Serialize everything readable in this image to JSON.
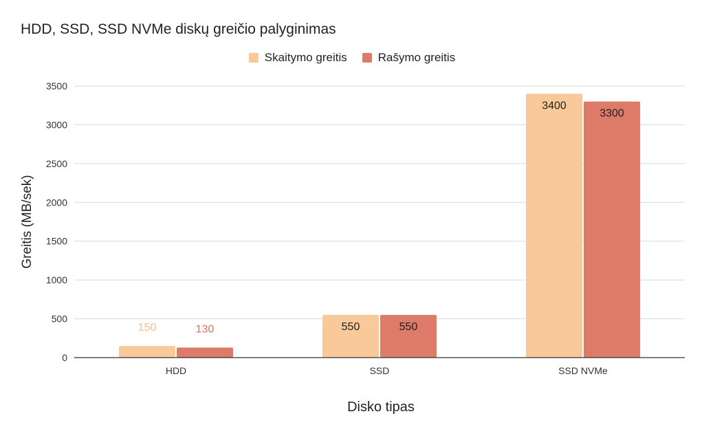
{
  "chart_data": {
    "type": "bar",
    "title": "HDD, SSD, SSD NVMe diskų greičio palyginimas",
    "xlabel": "Disko tipas",
    "ylabel": "Greitis (MB/sek)",
    "categories": [
      "HDD",
      "SSD",
      "SSD NVMe"
    ],
    "series": [
      {
        "name": "Skaitymo greitis",
        "values": [
          150,
          550,
          3400
        ],
        "color": "#F9C99A",
        "label_color_small": "#F5BE85"
      },
      {
        "name": "Rašymo greitis",
        "values": [
          130,
          550,
          3300
        ],
        "color": "#DD7A68",
        "label_color_small": "#D9735F"
      }
    ],
    "ylim": [
      0,
      3500
    ],
    "yticks": [
      0,
      500,
      1000,
      1500,
      2000,
      2500,
      3000,
      3500
    ],
    "grid": true,
    "legend_position": "top-center"
  }
}
